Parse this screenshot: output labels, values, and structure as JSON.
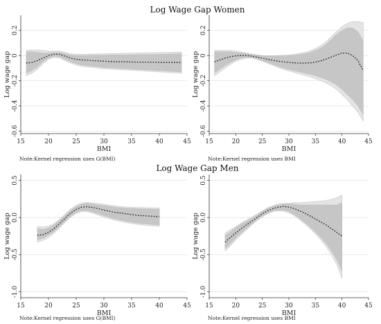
{
  "figure": {
    "women_title": "Log Wage Gap Women",
    "men_title": "Log Wage Gap Men"
  },
  "chart_data": [
    {
      "id": "women-left",
      "type": "line",
      "title": "",
      "xlabel": "BMI",
      "ylabel": "Log wage gap",
      "note": "Note:Kernel regression uses G(BMI)",
      "xlim": [
        15,
        45
      ],
      "ylim": [
        -0.62,
        0.32
      ],
      "xticks": [
        15,
        20,
        25,
        30,
        35,
        40,
        45
      ],
      "yticks": [
        -0.6,
        -0.4,
        -0.2,
        0,
        0.2
      ],
      "ytick_labels": [
        "-0.6",
        "-0.4",
        "-0.2",
        "0",
        "0.2"
      ],
      "grid": true,
      "x": [
        16,
        17,
        18,
        19,
        20,
        21,
        22,
        23,
        24,
        25,
        26,
        28,
        30,
        32,
        34,
        36,
        38,
        40,
        42,
        44
      ],
      "estimate": [
        -0.06,
        -0.055,
        -0.04,
        -0.02,
        0.0,
        0.01,
        0.01,
        -0.005,
        -0.02,
        -0.03,
        -0.035,
        -0.04,
        -0.045,
        -0.05,
        -0.05,
        -0.052,
        -0.053,
        -0.055,
        -0.055,
        -0.055
      ],
      "inner_band": {
        "lower": [
          -0.14,
          -0.12,
          -0.09,
          -0.05,
          -0.02,
          -0.005,
          -0.01,
          -0.03,
          -0.05,
          -0.065,
          -0.075,
          -0.085,
          -0.095,
          -0.1,
          -0.105,
          -0.11,
          -0.115,
          -0.12,
          -0.125,
          -0.13
        ],
        "upper": [
          0.03,
          0.03,
          0.025,
          0.02,
          0.02,
          0.025,
          0.025,
          0.015,
          0.005,
          0.0,
          0.0,
          0.002,
          0.004,
          0.005,
          0.006,
          0.007,
          0.008,
          0.01,
          0.012,
          0.015
        ]
      },
      "outer_band": {
        "lower": [
          -0.16,
          -0.14,
          -0.11,
          -0.065,
          -0.03,
          -0.015,
          -0.02,
          -0.04,
          -0.06,
          -0.075,
          -0.085,
          -0.095,
          -0.105,
          -0.11,
          -0.115,
          -0.12,
          -0.125,
          -0.13,
          -0.135,
          -0.14
        ],
        "upper": [
          0.04,
          0.045,
          0.045,
          0.04,
          0.035,
          0.035,
          0.035,
          0.025,
          0.015,
          0.01,
          0.01,
          0.012,
          0.014,
          0.016,
          0.018,
          0.02,
          0.022,
          0.024,
          0.026,
          0.028
        ]
      }
    },
    {
      "id": "women-right",
      "type": "line",
      "title": "",
      "xlabel": "BMI",
      "ylabel": "Log wage gap",
      "note": "Note:Kernel regression uses BMI",
      "xlim": [
        15,
        45
      ],
      "ylim": [
        -0.62,
        0.32
      ],
      "xticks": [
        15,
        20,
        25,
        30,
        35,
        40,
        45
      ],
      "yticks": [
        -0.6,
        -0.4,
        -0.2,
        0,
        0.2
      ],
      "ytick_labels": [
        "-0.6",
        "-0.4",
        "-0.2",
        "0",
        "0.2"
      ],
      "grid": true,
      "x": [
        16,
        17,
        18,
        19,
        20,
        21,
        22,
        23,
        24,
        25,
        26,
        27,
        28,
        29,
        30,
        31,
        32,
        33,
        34,
        35,
        36,
        37,
        38,
        39,
        40,
        41,
        42,
        43,
        44
      ],
      "estimate": [
        -0.05,
        -0.035,
        -0.02,
        -0.01,
        -0.002,
        0.0,
        0.0,
        -0.005,
        -0.012,
        -0.02,
        -0.03,
        -0.038,
        -0.045,
        -0.05,
        -0.055,
        -0.058,
        -0.06,
        -0.06,
        -0.058,
        -0.052,
        -0.042,
        -0.028,
        -0.012,
        0.005,
        0.02,
        0.02,
        0.0,
        -0.04,
        -0.12
      ],
      "inner_band": {
        "lower": [
          -0.14,
          -0.11,
          -0.08,
          -0.055,
          -0.035,
          -0.02,
          -0.012,
          -0.015,
          -0.025,
          -0.04,
          -0.055,
          -0.07,
          -0.085,
          -0.1,
          -0.11,
          -0.12,
          -0.13,
          -0.14,
          -0.15,
          -0.16,
          -0.175,
          -0.19,
          -0.21,
          -0.235,
          -0.27,
          -0.31,
          -0.35,
          -0.4,
          -0.47
        ],
        "upper": [
          0.03,
          0.03,
          0.03,
          0.03,
          0.025,
          0.02,
          0.015,
          0.008,
          0.002,
          -0.002,
          -0.005,
          -0.005,
          -0.004,
          -0.003,
          -0.001,
          0.002,
          0.008,
          0.015,
          0.025,
          0.04,
          0.06,
          0.09,
          0.13,
          0.17,
          0.2,
          0.22,
          0.22,
          0.19,
          0.12
        ]
      },
      "outer_band": {
        "lower": [
          -0.16,
          -0.13,
          -0.1,
          -0.07,
          -0.045,
          -0.03,
          -0.02,
          -0.02,
          -0.03,
          -0.045,
          -0.062,
          -0.078,
          -0.094,
          -0.11,
          -0.122,
          -0.134,
          -0.146,
          -0.158,
          -0.17,
          -0.184,
          -0.2,
          -0.218,
          -0.24,
          -0.27,
          -0.31,
          -0.35,
          -0.4,
          -0.45,
          -0.52
        ],
        "upper": [
          0.04,
          0.04,
          0.04,
          0.04,
          0.035,
          0.028,
          0.02,
          0.012,
          0.005,
          0.0,
          -0.002,
          -0.001,
          0.0,
          0.002,
          0.005,
          0.01,
          0.017,
          0.026,
          0.038,
          0.055,
          0.078,
          0.11,
          0.15,
          0.19,
          0.23,
          0.255,
          0.27,
          0.27,
          0.26
        ]
      }
    },
    {
      "id": "men-left",
      "type": "line",
      "title": "",
      "xlabel": "BMI",
      "ylabel": "Log wage gap",
      "note": "Note:Kernel regression uses G(BMI)",
      "xlim": [
        15,
        45
      ],
      "ylim": [
        -1.08,
        0.58
      ],
      "xticks": [
        15,
        20,
        25,
        30,
        35,
        40,
        45
      ],
      "yticks": [
        -1.0,
        -0.5,
        0.0,
        0.5
      ],
      "ytick_labels": [
        "-1.0",
        "-0.5",
        "0.0",
        "0.5"
      ],
      "grid": true,
      "x": [
        18,
        19,
        20,
        21,
        22,
        23,
        24,
        25,
        26,
        27,
        28,
        29,
        30,
        32,
        34,
        36,
        38,
        40
      ],
      "estimate": [
        -0.24,
        -0.23,
        -0.2,
        -0.15,
        -0.08,
        -0.01,
        0.06,
        0.11,
        0.14,
        0.145,
        0.135,
        0.12,
        0.1,
        0.07,
        0.05,
        0.03,
        0.02,
        0.01
      ],
      "inner_band": {
        "lower": [
          -0.3,
          -0.28,
          -0.24,
          -0.19,
          -0.12,
          -0.05,
          0.02,
          0.07,
          0.095,
          0.095,
          0.075,
          0.05,
          0.025,
          -0.02,
          -0.05,
          -0.075,
          -0.09,
          -0.1
        ],
        "upper": [
          -0.15,
          -0.16,
          -0.14,
          -0.1,
          -0.04,
          0.03,
          0.1,
          0.15,
          0.18,
          0.19,
          0.18,
          0.17,
          0.16,
          0.14,
          0.125,
          0.12,
          0.115,
          0.11
        ]
      },
      "outer_band": {
        "lower": [
          -0.33,
          -0.31,
          -0.27,
          -0.21,
          -0.14,
          -0.065,
          0.005,
          0.055,
          0.08,
          0.078,
          0.058,
          0.033,
          0.008,
          -0.037,
          -0.067,
          -0.092,
          -0.107,
          -0.12
        ],
        "upper": [
          -0.12,
          -0.13,
          -0.115,
          -0.08,
          -0.025,
          0.045,
          0.115,
          0.165,
          0.195,
          0.205,
          0.197,
          0.187,
          0.177,
          0.157,
          0.142,
          0.137,
          0.132,
          0.13
        ]
      }
    },
    {
      "id": "men-right",
      "type": "line",
      "title": "",
      "xlabel": "BMI",
      "ylabel": "Log wage gap",
      "note": "Note:Kernel regression uses BMI",
      "xlim": [
        15,
        45
      ],
      "ylim": [
        -1.08,
        0.58
      ],
      "xticks": [
        15,
        20,
        25,
        30,
        35,
        40,
        45
      ],
      "yticks": [
        -1.0,
        -0.5,
        0.0,
        0.5
      ],
      "ytick_labels": [
        "-1.0",
        "-0.5",
        "0.0",
        "0.5"
      ],
      "grid": true,
      "x": [
        18,
        19,
        20,
        21,
        22,
        23,
        24,
        25,
        26,
        27,
        28,
        29,
        30,
        31,
        32,
        33,
        34,
        35,
        36,
        37,
        38,
        39,
        40
      ],
      "estimate": [
        -0.33,
        -0.27,
        -0.21,
        -0.15,
        -0.1,
        -0.05,
        0.0,
        0.05,
        0.09,
        0.12,
        0.14,
        0.15,
        0.14,
        0.12,
        0.09,
        0.06,
        0.02,
        -0.02,
        -0.06,
        -0.1,
        -0.15,
        -0.2,
        -0.25
      ],
      "inner_band": {
        "lower": [
          -0.42,
          -0.35,
          -0.28,
          -0.21,
          -0.15,
          -0.09,
          -0.03,
          0.02,
          0.06,
          0.09,
          0.1,
          0.1,
          0.08,
          0.04,
          -0.01,
          -0.07,
          -0.13,
          -0.2,
          -0.27,
          -0.35,
          -0.45,
          -0.57,
          -0.72
        ],
        "upper": [
          -0.24,
          -0.19,
          -0.14,
          -0.09,
          -0.05,
          -0.01,
          0.03,
          0.08,
          0.12,
          0.15,
          0.17,
          0.18,
          0.18,
          0.18,
          0.17,
          0.17,
          0.17,
          0.17,
          0.17,
          0.17,
          0.17,
          0.17,
          0.2
        ]
      },
      "outer_band": {
        "lower": [
          -0.45,
          -0.38,
          -0.3,
          -0.23,
          -0.165,
          -0.1,
          -0.04,
          0.01,
          0.05,
          0.08,
          0.09,
          0.085,
          0.065,
          0.025,
          -0.025,
          -0.085,
          -0.15,
          -0.22,
          -0.3,
          -0.39,
          -0.5,
          -0.63,
          -0.82
        ],
        "upper": [
          -0.21,
          -0.165,
          -0.12,
          -0.075,
          -0.035,
          0.005,
          0.045,
          0.09,
          0.13,
          0.16,
          0.18,
          0.19,
          0.195,
          0.2,
          0.2,
          0.205,
          0.21,
          0.215,
          0.22,
          0.23,
          0.245,
          0.265,
          0.3
        ]
      }
    }
  ]
}
